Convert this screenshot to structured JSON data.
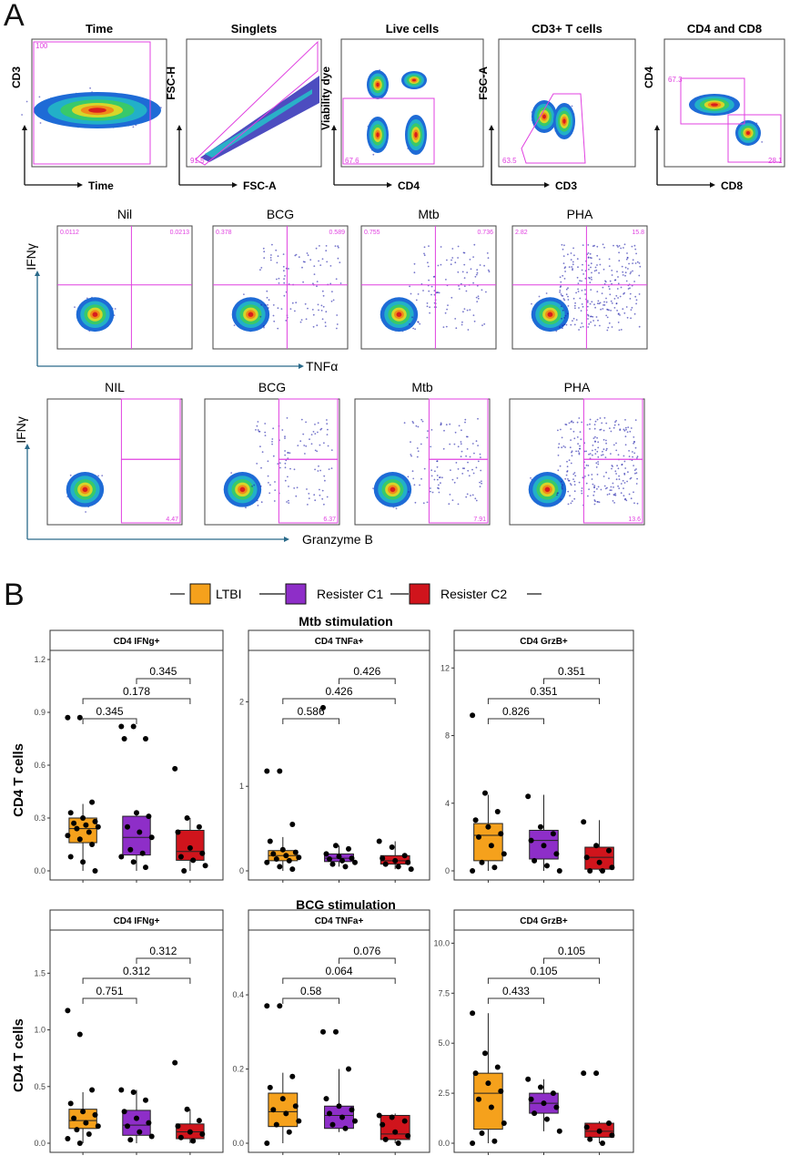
{
  "panel_a": {
    "letter": "A",
    "gating": [
      {
        "title": "Time",
        "xlabel": "Time",
        "ylabel": "CD3",
        "gate_label": "100"
      },
      {
        "title": "Singlets",
        "xlabel": "FSC-A",
        "ylabel": "FSC-H",
        "gate_label": "91.5"
      },
      {
        "title": "Live cells",
        "xlabel": "CD4",
        "ylabel": "Viability dye",
        "gate_label": "67.6"
      },
      {
        "title": "CD3+ T cells",
        "xlabel": "CD3",
        "ylabel": "FSC-A",
        "gate_label": "63.5"
      },
      {
        "title": "CD4 and CD8",
        "xlabel": "CD8",
        "ylabel": "CD4",
        "gate_label": "67.3",
        "gate_label_2": "28.1"
      }
    ],
    "row2": {
      "ylabel": "IFNγ",
      "xlabel": "TNFα",
      "plots": [
        {
          "title": "Nil",
          "ul": "0.0112",
          "ur": "0.0213"
        },
        {
          "title": "BCG",
          "ul": "0.378",
          "ur": "0.589"
        },
        {
          "title": "Mtb",
          "ul": "0.755",
          "ur": "0.736"
        },
        {
          "title": "PHA",
          "ul": "2.82",
          "ur": "15.8"
        }
      ]
    },
    "row3": {
      "ylabel": "IFNγ",
      "xlabel": "Granzyme B",
      "plots": [
        {
          "title": "NIL",
          "lr": "4.47"
        },
        {
          "title": "BCG",
          "lr": "6.37"
        },
        {
          "title": "Mtb",
          "lr": "7.91"
        },
        {
          "title": "PHA",
          "lr": "13.6"
        }
      ]
    }
  },
  "panel_b": {
    "letter": "B",
    "legend": [
      {
        "name": "LTBI",
        "color": "#F5A11C"
      },
      {
        "name": "Resister C1",
        "color": "#8E2EC8"
      },
      {
        "name": "Resister C2",
        "color": "#D0141C"
      }
    ],
    "ylabel": "CD4 T cells"
  },
  "chart_data": [
    {
      "type": "box",
      "section": "Mtb stimulation",
      "title": "CD4 IFNg+",
      "ylim": [
        0,
        1.2
      ],
      "yticks": [
        "0.0",
        "0.3",
        "0.6",
        "0.9",
        "1.2"
      ],
      "series": [
        {
          "name": "LTBI",
          "q1": 0.16,
          "median": 0.24,
          "q3": 0.3,
          "min": 0.0,
          "max": 0.38,
          "points": [
            0.87,
            0.87,
            0.39,
            0.33,
            0.3,
            0.28,
            0.27,
            0.26,
            0.25,
            0.24,
            0.22,
            0.2,
            0.18,
            0.15,
            0.08,
            0.05,
            0.0
          ]
        },
        {
          "name": "Resister C1",
          "q1": 0.09,
          "median": 0.19,
          "q3": 0.31,
          "min": 0.0,
          "max": 0.33,
          "points": [
            0.82,
            0.82,
            0.75,
            0.75,
            0.33,
            0.31,
            0.25,
            0.22,
            0.19,
            0.12,
            0.1,
            0.08,
            0.05,
            0.02
          ]
        },
        {
          "name": "Resister C2",
          "q1": 0.06,
          "median": 0.11,
          "q3": 0.23,
          "min": 0.0,
          "max": 0.3,
          "points": [
            0.58,
            0.3,
            0.25,
            0.22,
            0.13,
            0.1,
            0.08,
            0.06,
            0.03,
            0.0
          ]
        }
      ],
      "comparisons": [
        {
          "pair": [
            "LTBI",
            "Resister C1"
          ],
          "p": "0.345"
        },
        {
          "pair": [
            "LTBI",
            "Resister C2"
          ],
          "p": "0.178"
        },
        {
          "pair": [
            "Resister C1",
            "Resister C2"
          ],
          "p": "0.345"
        }
      ]
    },
    {
      "type": "box",
      "section": "Mtb stimulation",
      "title": "CD4 TNFa+",
      "ylim": [
        0,
        2.5
      ],
      "yticks": [
        "0",
        "1",
        "2"
      ],
      "series": [
        {
          "name": "LTBI",
          "q1": 0.12,
          "median": 0.18,
          "q3": 0.24,
          "min": 0.0,
          "max": 0.4,
          "points": [
            1.18,
            1.18,
            0.55,
            0.35,
            0.25,
            0.22,
            0.2,
            0.18,
            0.16,
            0.14,
            0.12,
            0.1,
            0.05,
            0.02
          ]
        },
        {
          "name": "Resister C1",
          "q1": 0.11,
          "median": 0.15,
          "q3": 0.2,
          "min": 0.05,
          "max": 0.3,
          "points": [
            1.93,
            0.3,
            0.26,
            0.2,
            0.17,
            0.15,
            0.14,
            0.12,
            0.1,
            0.08,
            0.05
          ]
        },
        {
          "name": "Resister C2",
          "q1": 0.08,
          "median": 0.12,
          "q3": 0.18,
          "min": 0.02,
          "max": 0.35,
          "points": [
            0.35,
            0.28,
            0.18,
            0.15,
            0.12,
            0.1,
            0.08,
            0.05,
            0.02
          ]
        }
      ],
      "comparisons": [
        {
          "pair": [
            "LTBI",
            "Resister C1"
          ],
          "p": "0.586"
        },
        {
          "pair": [
            "LTBI",
            "Resister C2"
          ],
          "p": "0.426"
        },
        {
          "pair": [
            "Resister C1",
            "Resister C2"
          ],
          "p": "0.426"
        }
      ]
    },
    {
      "type": "box",
      "section": "Mtb stimulation",
      "title": "CD4 GrzB+",
      "ylim": [
        0,
        12.5
      ],
      "yticks": [
        "0",
        "4",
        "8",
        "12"
      ],
      "series": [
        {
          "name": "LTBI",
          "q1": 0.6,
          "median": 2.1,
          "q3": 2.8,
          "min": 0.0,
          "max": 4.5,
          "points": [
            9.2,
            4.6,
            3.5,
            3.0,
            2.6,
            2.2,
            2.0,
            1.5,
            1.0,
            0.5,
            0.2,
            0.0
          ]
        },
        {
          "name": "Resister C1",
          "q1": 0.7,
          "median": 1.8,
          "q3": 2.4,
          "min": 0.0,
          "max": 4.5,
          "points": [
            4.4,
            2.6,
            2.2,
            1.8,
            1.5,
            1.0,
            0.6,
            0.3,
            0.0
          ]
        },
        {
          "name": "Resister C2",
          "q1": 0.1,
          "median": 0.8,
          "q3": 1.4,
          "min": 0.0,
          "max": 3.0,
          "points": [
            2.9,
            1.5,
            1.2,
            0.8,
            0.5,
            0.2,
            0.0,
            0.0
          ]
        }
      ],
      "comparisons": [
        {
          "pair": [
            "LTBI",
            "Resister C1"
          ],
          "p": "0.826"
        },
        {
          "pair": [
            "LTBI",
            "Resister C2"
          ],
          "p": "0.351"
        },
        {
          "pair": [
            "Resister C1",
            "Resister C2"
          ],
          "p": "0.351"
        }
      ]
    },
    {
      "type": "box",
      "section": "BCG stimulation",
      "title": "CD4 IFNg+",
      "ylim": [
        0,
        1.8
      ],
      "yticks": [
        "0.0",
        "0.5",
        "1.0",
        "1.5"
      ],
      "series": [
        {
          "name": "LTBI",
          "q1": 0.13,
          "median": 0.2,
          "q3": 0.3,
          "min": 0.0,
          "max": 0.45,
          "points": [
            1.17,
            0.96,
            0.47,
            0.35,
            0.28,
            0.25,
            0.22,
            0.18,
            0.15,
            0.12,
            0.08,
            0.04,
            0.0
          ]
        },
        {
          "name": "Resister C1",
          "q1": 0.07,
          "median": 0.16,
          "q3": 0.29,
          "min": 0.0,
          "max": 0.47,
          "points": [
            0.47,
            0.45,
            0.38,
            0.28,
            0.22,
            0.18,
            0.15,
            0.1,
            0.06,
            0.03
          ]
        },
        {
          "name": "Resister C2",
          "q1": 0.04,
          "median": 0.1,
          "q3": 0.17,
          "min": 0.0,
          "max": 0.3,
          "points": [
            0.71,
            0.3,
            0.2,
            0.15,
            0.1,
            0.08,
            0.05,
            0.02
          ]
        }
      ],
      "comparisons": [
        {
          "pair": [
            "LTBI",
            "Resister C1"
          ],
          "p": "0.751"
        },
        {
          "pair": [
            "LTBI",
            "Resister C2"
          ],
          "p": "0.312"
        },
        {
          "pair": [
            "Resister C1",
            "Resister C2"
          ],
          "p": "0.312"
        }
      ]
    },
    {
      "type": "box",
      "section": "BCG stimulation",
      "title": "CD4 TNFa+",
      "ylim": [
        0,
        0.55
      ],
      "yticks": [
        "0.0",
        "0.2",
        "0.4"
      ],
      "series": [
        {
          "name": "LTBI",
          "q1": 0.045,
          "median": 0.085,
          "q3": 0.135,
          "min": 0.0,
          "max": 0.19,
          "points": [
            0.37,
            0.37,
            0.18,
            0.15,
            0.12,
            0.1,
            0.09,
            0.08,
            0.06,
            0.05,
            0.03,
            0.0
          ]
        },
        {
          "name": "Resister C1",
          "q1": 0.04,
          "median": 0.075,
          "q3": 0.1,
          "min": 0.03,
          "max": 0.2,
          "points": [
            0.3,
            0.3,
            0.2,
            0.12,
            0.1,
            0.09,
            0.08,
            0.07,
            0.06,
            0.05,
            0.04
          ]
        },
        {
          "name": "Resister C2",
          "q1": 0.01,
          "median": 0.025,
          "q3": 0.075,
          "min": 0.0,
          "max": 0.08,
          "points": [
            0.075,
            0.07,
            0.06,
            0.05,
            0.03,
            0.02,
            0.01,
            0.0
          ]
        }
      ],
      "comparisons": [
        {
          "pair": [
            "LTBI",
            "Resister C1"
          ],
          "p": "0.58"
        },
        {
          "pair": [
            "LTBI",
            "Resister C2"
          ],
          "p": "0.064"
        },
        {
          "pair": [
            "Resister C1",
            "Resister C2"
          ],
          "p": "0.076"
        }
      ]
    },
    {
      "type": "box",
      "section": "BCG stimulation",
      "title": "CD4 GrzB+",
      "ylim": [
        0,
        10.2
      ],
      "yticks": [
        "0.0",
        "2.5",
        "5.0",
        "7.5",
        "10.0"
      ],
      "series": [
        {
          "name": "LTBI",
          "q1": 0.7,
          "median": 2.5,
          "q3": 3.5,
          "min": 0.0,
          "max": 6.5,
          "points": [
            6.5,
            4.5,
            3.8,
            3.5,
            3.0,
            2.6,
            2.2,
            1.8,
            1.0,
            0.5,
            0.1,
            0.0
          ]
        },
        {
          "name": "Resister C1",
          "q1": 1.5,
          "median": 2.0,
          "q3": 2.5,
          "min": 0.6,
          "max": 3.2,
          "points": [
            3.2,
            2.8,
            2.5,
            2.2,
            2.0,
            1.8,
            1.5,
            1.2,
            0.6
          ]
        },
        {
          "name": "Resister C2",
          "q1": 0.3,
          "median": 0.6,
          "q3": 1.0,
          "min": 0.0,
          "max": 1.1,
          "points": [
            3.5,
            3.5,
            1.0,
            0.8,
            0.6,
            0.4,
            0.2,
            0.0
          ]
        }
      ],
      "comparisons": [
        {
          "pair": [
            "LTBI",
            "Resister C1"
          ],
          "p": "0.433"
        },
        {
          "pair": [
            "LTBI",
            "Resister C2"
          ],
          "p": "0.105"
        },
        {
          "pair": [
            "Resister C1",
            "Resister C2"
          ],
          "p": "0.105"
        }
      ]
    }
  ]
}
